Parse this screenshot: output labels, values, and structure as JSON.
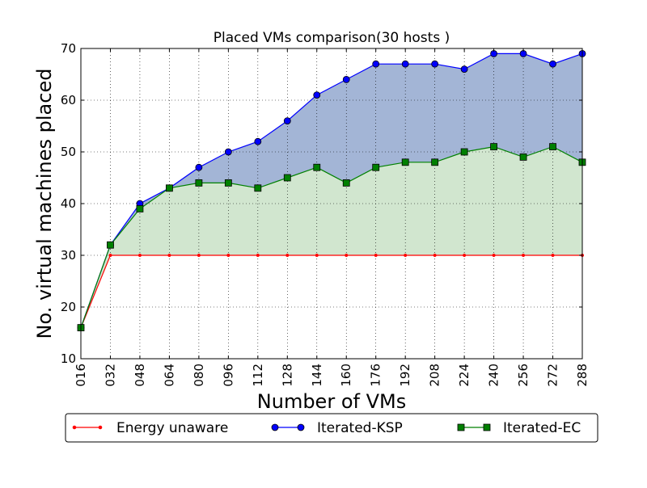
{
  "chart_data": {
    "type": "line",
    "title": "Placed VMs comparison(30 hosts )",
    "xlabel": "Number of VMs",
    "ylabel": "No. virtual machines placed",
    "categories": [
      "016",
      "032",
      "048",
      "064",
      "080",
      "096",
      "112",
      "128",
      "144",
      "160",
      "176",
      "192",
      "208",
      "224",
      "240",
      "256",
      "272",
      "288"
    ],
    "ylim": [
      10,
      70
    ],
    "yticks": [
      "10",
      "20",
      "30",
      "40",
      "50",
      "60",
      "70"
    ],
    "grid": true,
    "legend_placement": "bottom",
    "series": [
      {
        "name": "Energy unaware",
        "color": "#ff0000",
        "marker": "dot",
        "values": [
          16,
          30,
          30,
          30,
          30,
          30,
          30,
          30,
          30,
          30,
          30,
          30,
          30,
          30,
          30,
          30,
          30,
          30
        ]
      },
      {
        "name": "Iterated-KSP",
        "color": "#0000ff",
        "marker": "circle",
        "values": [
          16,
          32,
          40,
          43,
          47,
          50,
          52,
          56,
          61,
          64,
          67,
          67,
          67,
          66,
          69,
          69,
          67,
          69
        ]
      },
      {
        "name": "Iterated-EC",
        "color": "#008000",
        "marker": "square",
        "values": [
          16,
          32,
          39,
          43,
          44,
          44,
          43,
          45,
          47,
          44,
          47,
          48,
          48,
          50,
          51,
          49,
          51,
          48
        ]
      }
    ],
    "fills": [
      {
        "between": [
          "Iterated-KSP",
          "Iterated-EC"
        ],
        "color": "#a3b5d6"
      },
      {
        "between": [
          "Iterated-EC",
          "Energy unaware"
        ],
        "color": "#d1e6cf"
      }
    ]
  }
}
